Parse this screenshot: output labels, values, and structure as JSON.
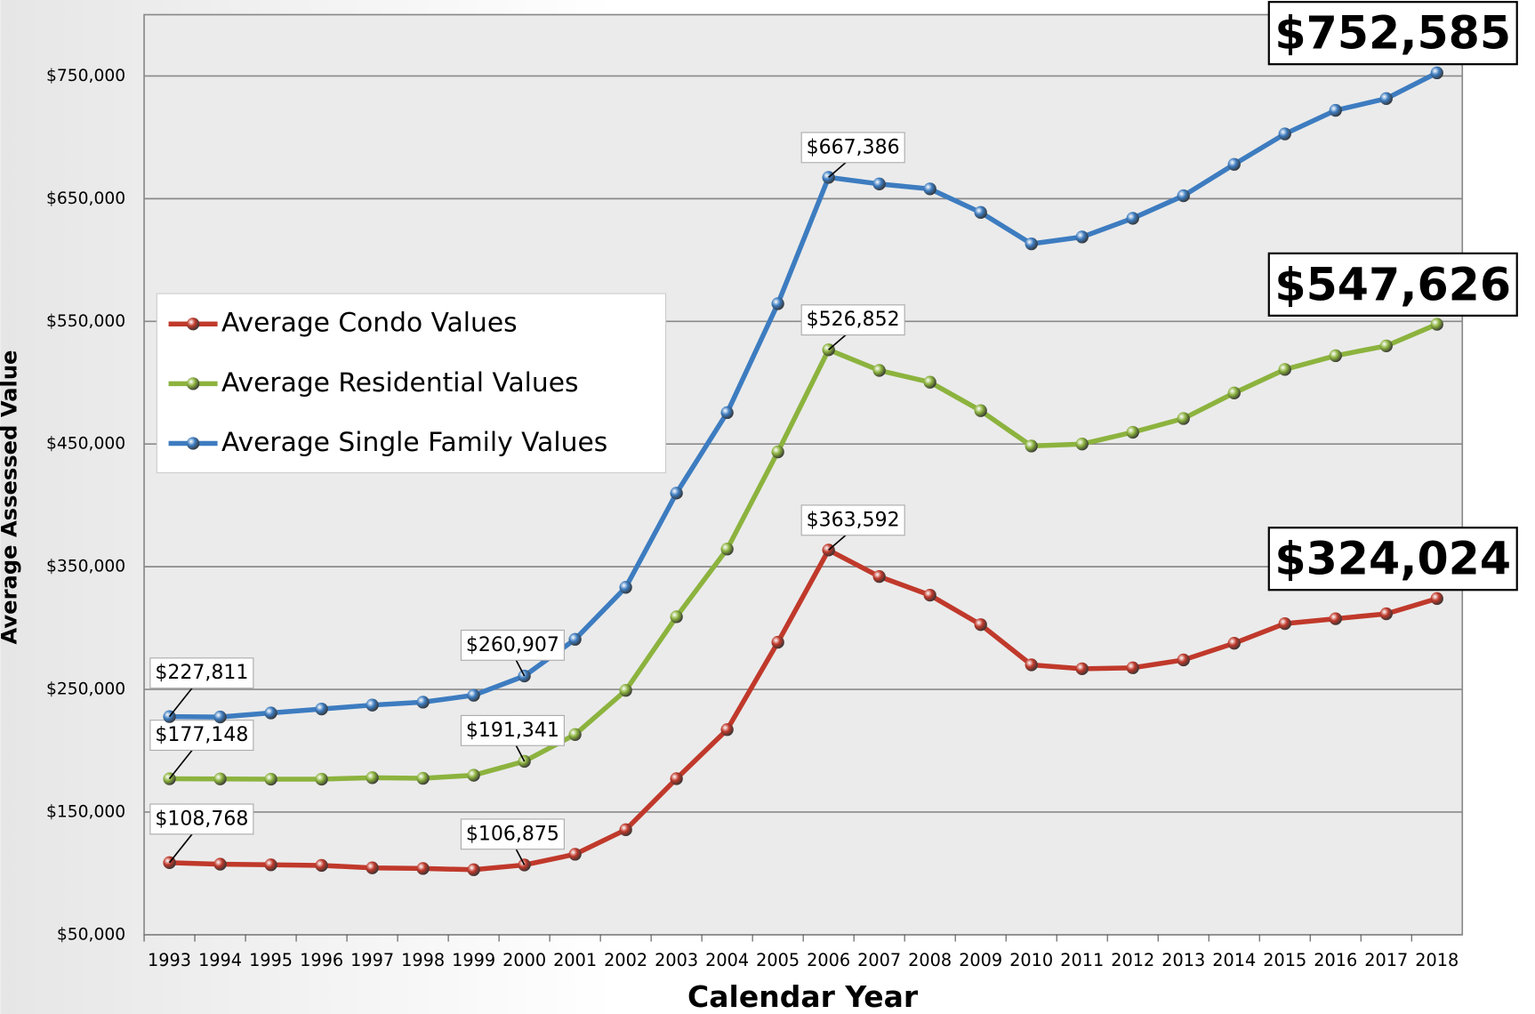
{
  "chart_data": {
    "type": "line",
    "x_label": "Calendar Year",
    "y_label": "Average Assessed Value",
    "categories": [
      "1993",
      "1994",
      "1995",
      "1996",
      "1997",
      "1998",
      "1999",
      "2000",
      "2001",
      "2002",
      "2003",
      "2004",
      "2005",
      "2006",
      "2007",
      "2008",
      "2009",
      "2010",
      "2011",
      "2012",
      "2013",
      "2014",
      "2015",
      "2016",
      "2017",
      "2018"
    ],
    "series": [
      {
        "name": "Average Condo Values",
        "color": "#c0392b",
        "values": [
          108768,
          107500,
          107000,
          106500,
          104500,
          104000,
          103000,
          106875,
          115600,
          135600,
          177200,
          217200,
          288400,
          363592,
          342000,
          326800,
          302800,
          270000,
          266800,
          267600,
          274000,
          287600,
          303600,
          307600,
          311600,
          324024
        ],
        "value_labels": [
          "$108,768",
          null,
          null,
          null,
          null,
          null,
          null,
          "$106,875",
          null,
          null,
          null,
          null,
          null,
          "$363,592",
          null,
          null,
          null,
          null,
          null,
          null,
          null,
          null,
          null,
          null,
          null,
          "$324,024"
        ]
      },
      {
        "name": "Average Residential Values",
        "color": "#8cb33e",
        "values": [
          177148,
          177000,
          176800,
          176800,
          178000,
          177500,
          180000,
          191341,
          213200,
          249200,
          309200,
          364400,
          443600,
          526852,
          510000,
          500400,
          477200,
          448400,
          450000,
          459600,
          470800,
          491600,
          510800,
          522000,
          530000,
          547626
        ],
        "value_labels": [
          "$177,148",
          null,
          null,
          null,
          null,
          null,
          null,
          "$191,341",
          null,
          null,
          null,
          null,
          null,
          "$526,852",
          null,
          null,
          null,
          null,
          null,
          null,
          null,
          null,
          null,
          null,
          null,
          "$547,626"
        ]
      },
      {
        "name": "Average Single Family Values",
        "color": "#3d7cc0",
        "values": [
          227811,
          227500,
          230800,
          234000,
          237200,
          239600,
          245200,
          260907,
          290800,
          333200,
          410000,
          475600,
          564400,
          667386,
          662000,
          658000,
          638800,
          613200,
          618800,
          634000,
          652400,
          678000,
          702800,
          722000,
          731600,
          752585
        ],
        "value_labels": [
          "$227,811",
          null,
          null,
          null,
          null,
          null,
          null,
          "$260,907",
          null,
          null,
          null,
          null,
          null,
          "$667,386",
          null,
          null,
          null,
          null,
          null,
          null,
          null,
          null,
          null,
          null,
          null,
          "$752,585"
        ]
      }
    ],
    "ylim": [
      50000,
      800000
    ],
    "yticks": [
      {
        "value": 50000,
        "label": "$50,000"
      },
      {
        "value": 150000,
        "label": "$150,000"
      },
      {
        "value": 250000,
        "label": "$250,000"
      },
      {
        "value": 350000,
        "label": "$350,000"
      },
      {
        "value": 450000,
        "label": "$450,000"
      },
      {
        "value": 550000,
        "label": "$550,000"
      },
      {
        "value": 650000,
        "label": "$650,000"
      },
      {
        "value": 750000,
        "label": "$750,000"
      }
    ],
    "grid": true,
    "legend": "upper left"
  }
}
